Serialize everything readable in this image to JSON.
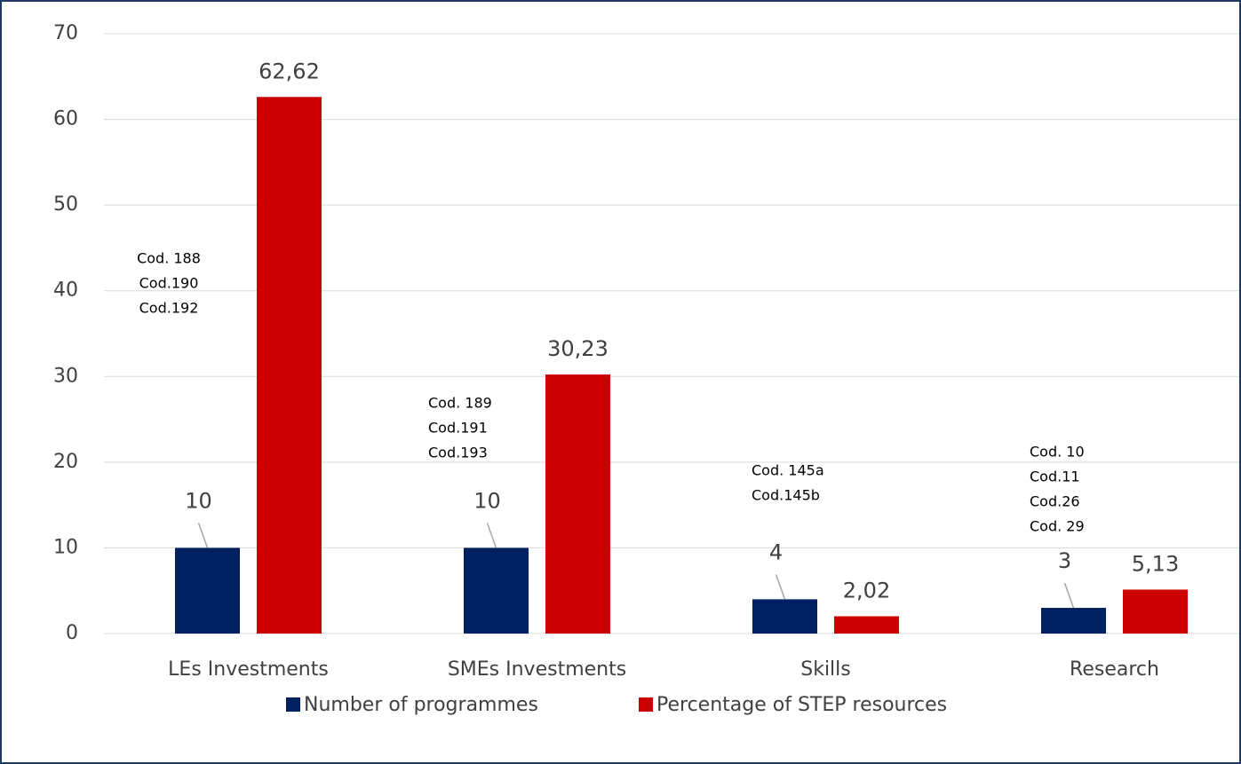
{
  "chart_data": {
    "type": "bar",
    "categories": [
      "LEs Investments",
      "SMEs Investments",
      "Skills",
      "Research"
    ],
    "series": [
      {
        "name": "Number of programmes",
        "color": "#002060",
        "values": [
          10,
          10,
          4,
          3
        ]
      },
      {
        "name": "Percentage of STEP resources",
        "color": "#cc0000",
        "values": [
          62.62,
          30.23,
          2.02,
          5.13
        ],
        "value_labels": [
          "62,62",
          "30,23",
          "2,02",
          "5,13"
        ]
      }
    ],
    "annotations": [
      [
        "Cod. 188",
        "Cod.190",
        "Cod.192"
      ],
      [
        "Cod. 189",
        "Cod.191",
        "Cod.193"
      ],
      [
        "Cod. 145a",
        "Cod.145b"
      ],
      [
        "Cod. 10",
        "Cod.11",
        "Cod.26",
        "Cod. 29"
      ]
    ],
    "ylim": [
      0,
      70
    ],
    "yticks": [
      0,
      10,
      20,
      30,
      40,
      50,
      60,
      70
    ],
    "grid": true,
    "legend": "bottom"
  }
}
